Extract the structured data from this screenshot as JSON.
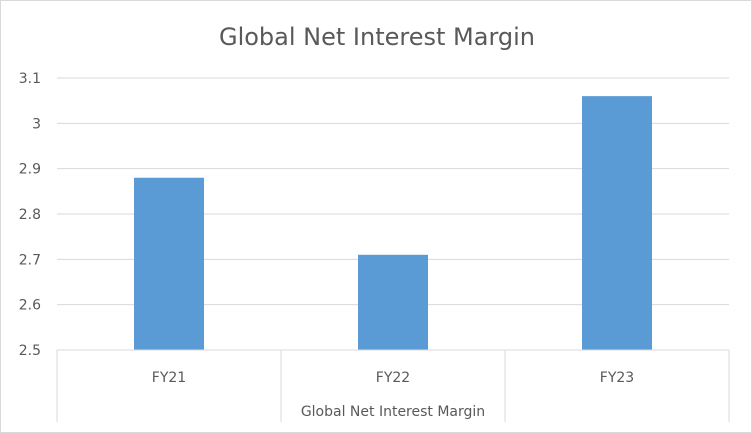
{
  "chart_data": {
    "type": "bar",
    "title": "Global Net Interest Margin",
    "xlabel": "Global Net Interest Margin",
    "ylabel": "",
    "categories": [
      "FY21",
      "FY22",
      "FY23"
    ],
    "values": [
      2.88,
      2.71,
      3.06
    ],
    "ylim": [
      2.5,
      3.1
    ],
    "yticks": [
      "2.5",
      "2.6",
      "2.7",
      "2.8",
      "2.9",
      "3",
      "3.1"
    ],
    "grid": true,
    "legend": "none",
    "bar_color": "#5b9bd5"
  }
}
